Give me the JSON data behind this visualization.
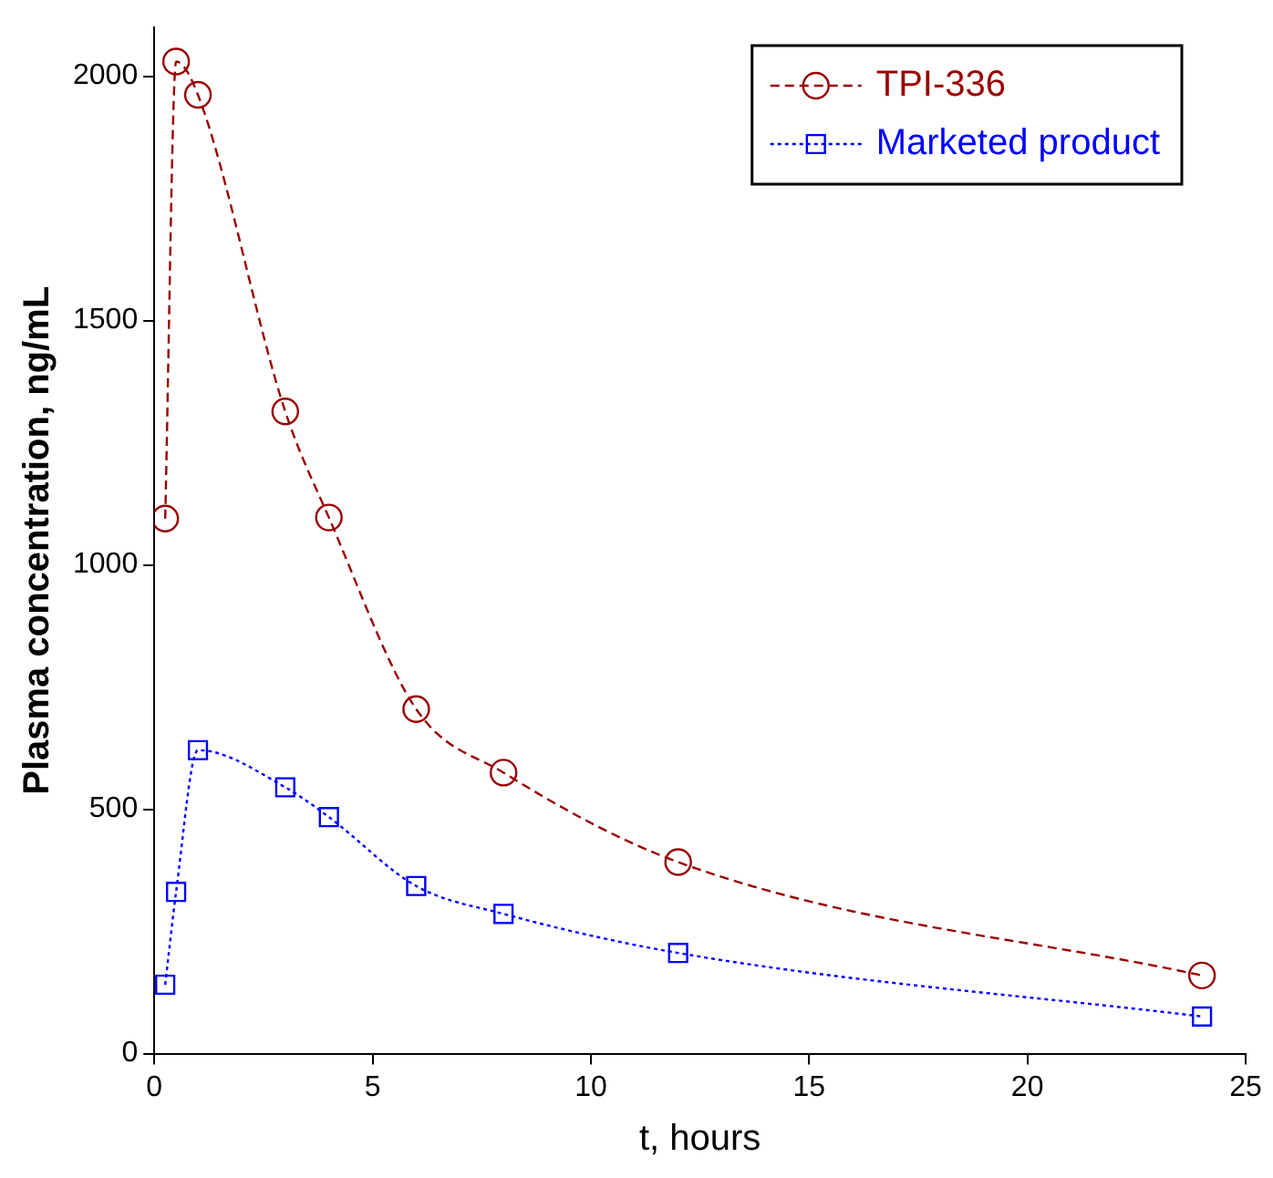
{
  "chart_data": {
    "type": "line",
    "xlabel": "t, hours",
    "ylabel": "Plasma concentration, ng/mL",
    "x": [
      0.25,
      0.5,
      1,
      3,
      4,
      6,
      8,
      12,
      24
    ],
    "series": [
      {
        "name": "TPI-336",
        "color": "#990000",
        "marker": "circle",
        "values": [
          1095,
          2030,
          1962,
          1314,
          1097,
          705,
          575,
          392,
          160
        ]
      },
      {
        "name": "Marketed product",
        "color": "#0000ff",
        "marker": "square",
        "values": [
          141,
          331,
          621,
          545,
          484,
          343,
          286,
          206,
          76
        ]
      }
    ],
    "xlim": [
      0,
      25
    ],
    "xticks": [
      0,
      5,
      10,
      15,
      20,
      25
    ],
    "ylim": [
      0,
      2100
    ],
    "yticks": [
      0,
      500,
      1000,
      1500,
      2000
    ],
    "grid": false,
    "legend": "top right",
    "line_style": "dashed"
  }
}
